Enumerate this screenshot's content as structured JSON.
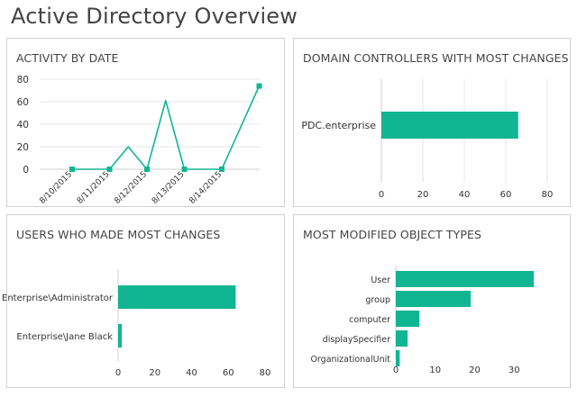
{
  "page": {
    "title": "Active Directory Overview"
  },
  "colors": {
    "accent": "#12b591",
    "grid": "#e4e4e4",
    "axis": "#cfcfcf",
    "text": "#333333"
  },
  "panels": {
    "activity": {
      "title": "ACTIVITY BY DATE"
    },
    "dcs": {
      "title": "DOMAIN CONTROLLERS WITH MOST CHANGES"
    },
    "users": {
      "title": "USERS WHO MADE MOST CHANGES"
    },
    "types": {
      "title": "MOST MODIFIED OBJECT TYPES"
    }
  },
  "chart_data": [
    {
      "id": "activity",
      "type": "line",
      "title": "ACTIVITY BY DATE",
      "x_tick_labels": [
        "8/10/2015",
        "8/11/2015",
        "8/12/2015",
        "8/13/2015",
        "8/14/2015"
      ],
      "points": [
        {
          "x": 0,
          "y": 0,
          "marker": true
        },
        {
          "x": 1,
          "y": 0,
          "marker": true
        },
        {
          "x": 1.5,
          "y": 20,
          "marker": false
        },
        {
          "x": 2,
          "y": 0,
          "marker": true
        },
        {
          "x": 2.5,
          "y": 61,
          "marker": false
        },
        {
          "x": 3,
          "y": 0,
          "marker": true
        },
        {
          "x": 4,
          "y": 0,
          "marker": true
        },
        {
          "x": 5,
          "y": 74,
          "marker": true
        }
      ],
      "yticks": [
        0,
        20,
        40,
        60,
        80
      ],
      "ylim": [
        0,
        80
      ],
      "grid": true
    },
    {
      "id": "dcs",
      "type": "bar",
      "orientation": "horizontal",
      "title": "DOMAIN CONTROLLERS WITH MOST CHANGES",
      "categories": [
        "PDC.enterprise"
      ],
      "values": [
        66
      ],
      "xticks": [
        0,
        20,
        40,
        60,
        80
      ],
      "xlim": [
        0,
        80
      ],
      "grid": true
    },
    {
      "id": "users",
      "type": "bar",
      "orientation": "horizontal",
      "title": "USERS WHO MADE MOST CHANGES",
      "categories": [
        "Enterprise\\Administrator",
        "Enterprise\\Jane Black"
      ],
      "values": [
        64,
        2
      ],
      "xticks": [
        0,
        20,
        40,
        60,
        80
      ],
      "xlim": [
        0,
        80
      ],
      "grid": false
    },
    {
      "id": "types",
      "type": "bar",
      "orientation": "horizontal",
      "title": "MOST MODIFIED OBJECT TYPES",
      "categories": [
        "User",
        "group",
        "computer",
        "displaySpecifier",
        "OrganizationalUnit"
      ],
      "values": [
        35,
        19,
        6,
        3,
        1
      ],
      "xticks": [
        0,
        10,
        20,
        30
      ],
      "xlim": [
        0,
        40
      ],
      "grid": false
    }
  ]
}
